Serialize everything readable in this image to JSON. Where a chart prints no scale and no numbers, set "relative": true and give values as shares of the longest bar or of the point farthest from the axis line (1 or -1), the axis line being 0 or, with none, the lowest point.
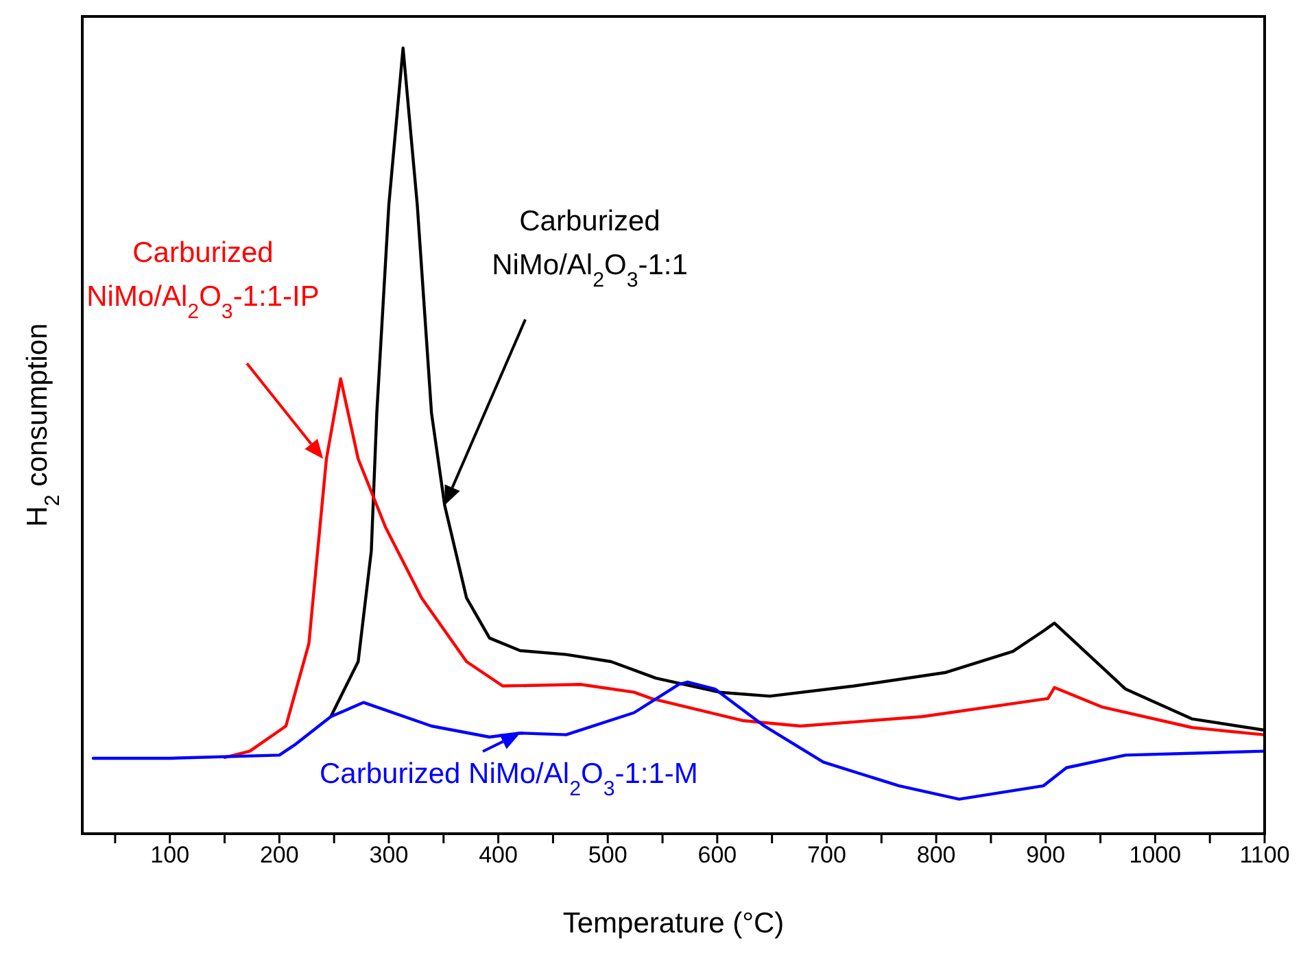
{
  "chart_data": {
    "type": "line",
    "relative": true,
    "xlabel": "Temperature (°C)",
    "ylabel": "H$_{2}$ consumption",
    "xlim": [
      20,
      1100
    ],
    "xticks": [
      {
        "value": 50,
        "label": null
      },
      100,
      {
        "value": 150,
        "label": null
      },
      200,
      {
        "value": 250,
        "label": null
      },
      300,
      {
        "value": 350,
        "label": null
      },
      400,
      {
        "value": 450,
        "label": null
      },
      500,
      {
        "value": 550,
        "label": null
      },
      600,
      {
        "value": 650,
        "label": null
      },
      700,
      {
        "value": 750,
        "label": null
      },
      800,
      {
        "value": 850,
        "label": null
      },
      900,
      {
        "value": 950,
        "label": null
      },
      1000,
      {
        "value": 1050,
        "label": null
      },
      1100
    ],
    "tick_labels": "x",
    "series": [
      {
        "name": "Carburized NiMo/Al$_{2}$O$_{3}$-1:1",
        "color": "#000000",
        "x": [
          247,
          272,
          284,
          289,
          300,
          313,
          326,
          339,
          351,
          371,
          392,
          420,
          462,
          503,
          544,
          602,
          648,
          725,
          808,
          870,
          898,
          908,
          932,
          973,
          1034,
          1099
        ],
        "values": [
          0.149,
          0.219,
          0.36,
          0.535,
          0.8,
          1.0,
          0.8,
          0.535,
          0.418,
          0.3,
          0.249,
          0.233,
          0.228,
          0.219,
          0.198,
          0.18,
          0.175,
          0.188,
          0.205,
          0.232,
          0.258,
          0.268,
          0.237,
          0.184,
          0.146,
          0.132
        ]
      },
      {
        "name": "Carburized NiMo/Al$_{2}$O$_{3}$-1:1-IP",
        "color": "#ff0000",
        "x": [
          150,
          173,
          206,
          227,
          235,
          243,
          256,
          272,
          297,
          330,
          371,
          404,
          475,
          524,
          540,
          623,
          676,
          787,
          902,
          908,
          952,
          1034,
          1099
        ],
        "values": [
          0.097,
          0.105,
          0.137,
          0.242,
          0.36,
          0.477,
          0.579,
          0.477,
          0.39,
          0.3,
          0.219,
          0.188,
          0.19,
          0.18,
          0.172,
          0.144,
          0.137,
          0.149,
          0.172,
          0.186,
          0.161,
          0.135,
          0.126
        ]
      },
      {
        "name": "Carburized NiMo/Al$_{2}$O$_{3}$-1:1-M",
        "color": "#0000ff",
        "x": [
          30,
          100,
          200,
          215,
          247,
          277,
          339,
          392,
          420,
          462,
          524,
          565,
          573,
          598,
          643,
          697,
          766,
          821,
          898,
          919,
          973,
          1099
        ],
        "values": [
          0.096,
          0.096,
          0.1,
          0.114,
          0.149,
          0.167,
          0.137,
          0.123,
          0.128,
          0.126,
          0.154,
          0.19,
          0.193,
          0.184,
          0.137,
          0.091,
          0.061,
          0.044,
          0.061,
          0.084,
          0.1,
          0.105
        ]
      }
    ]
  }
}
